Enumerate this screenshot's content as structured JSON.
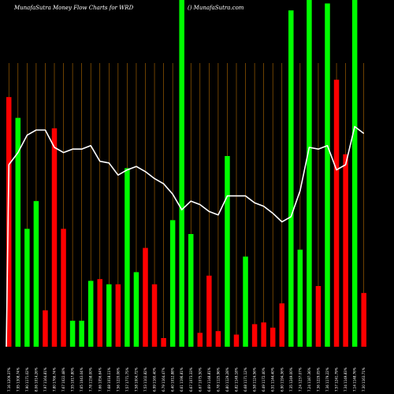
{
  "chart_data": {
    "type": "bar",
    "title": "MunafaSutra  Money Flow  Charts for WRD",
    "credit": "() MunafaSutra.com",
    "colors": {
      "up": "#00ff00",
      "down": "#ff0000",
      "line": "#ffffff",
      "grid": "#b36b00",
      "background": "#000000"
    },
    "ylim": [
      0,
      100
    ],
    "x_labels": [
      "7.16 1209.37%",
      "7.95 1308.74%",
      "7.90 1171.02%",
      "8.06 1014.26%",
      "7.97 1164.81%",
      "7.80 1766.74%",
      "7.67 1022.48%",
      "7.55 1017.80%",
      "7.65 1043.04%",
      "7.78 1158.00%",
      "7.66 1056.64%",
      "7.68 1018.11%",
      "7.56 1220.06%",
      "7.57 1771.75%",
      "7.58 1004.72%",
      "7.53 1102.82%",
      "6.99 1160.40%",
      "6.79 1164.47%",
      "6.40 1012.88%",
      "6.61 1196.81%",
      "6.67 1073.33%",
      "6.67 1075.50%",
      "6.69 1148.81%",
      "6.78 1125.96%",
      "6.80 1129.28%",
      "6.82 1149.18%",
      "6.68 1171.12%",
      "6.58 1124.56%",
      "6.49 1172.40%",
      "6.51 1144.40%",
      "6.90 1194.36%",
      "7.35 1249.00%",
      "7.24 1237.07%",
      "7.24 1187.36%",
      "7.36 1229.05%",
      "7.36 1179.22%",
      "7.57 1241.79%",
      "7.34 1149.83%",
      "7.14 1148.76%",
      "7.30 1163.71%"
    ],
    "bar_colors": [
      "down",
      "up",
      "up",
      "up",
      "down",
      "down",
      "down",
      "up",
      "up",
      "up",
      "down",
      "up",
      "down",
      "up",
      "up",
      "down",
      "down",
      "down",
      "up",
      "up",
      "up",
      "down",
      "down",
      "down",
      "up",
      "down",
      "up",
      "down",
      "down",
      "down",
      "down",
      "up",
      "up",
      "up",
      "down",
      "up",
      "down",
      "down",
      "up",
      "down"
    ],
    "series": [
      {
        "values": [
          72,
          66,
          34,
          42,
          10.5,
          63,
          34,
          7.5,
          7.5,
          19,
          19.5,
          18,
          18,
          51.5,
          21.5,
          28.5,
          18,
          2.5,
          36.5,
          100,
          32.5,
          4,
          20.5,
          4.5,
          55,
          3.5,
          26,
          6.5,
          7,
          5.5,
          12.5,
          97,
          28,
          100,
          17.5,
          99,
          77,
          55.5,
          100,
          15.5
        ]
      },
      {
        "values": [
          52.5,
          56,
          61,
          62.5,
          62.5,
          57.5,
          56,
          57,
          57,
          58,
          53.5,
          53,
          49.5,
          51,
          52,
          50.5,
          48.5,
          47,
          44,
          39.5,
          42,
          41,
          39,
          38,
          43.5,
          43.5,
          43.5,
          41.5,
          40.5,
          38.5,
          36,
          37.5,
          45,
          57.5,
          57,
          58,
          51,
          52.5,
          63.5,
          61.5
        ]
      }
    ]
  }
}
